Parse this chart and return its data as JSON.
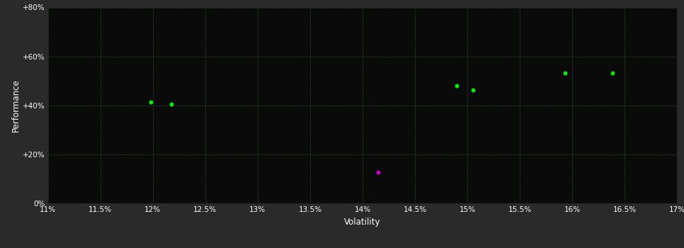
{
  "background_color": "#2a2a2a",
  "plot_bg_color": "#0a0a0a",
  "grid_color": "#3a6a3a",
  "text_color": "#ffffff",
  "xlabel": "Volatility",
  "ylabel": "Performance",
  "xlim": [
    0.11,
    0.17
  ],
  "ylim": [
    0.0,
    0.8
  ],
  "xticks": [
    0.11,
    0.115,
    0.12,
    0.125,
    0.13,
    0.135,
    0.14,
    0.145,
    0.15,
    0.155,
    0.16,
    0.165,
    0.17
  ],
  "yticks": [
    0.0,
    0.2,
    0.4,
    0.6,
    0.8
  ],
  "ytick_labels": [
    "0%",
    "+20%",
    "+40%",
    "+60%",
    "+80%"
  ],
  "xtick_labels": [
    "11%",
    "11.5%",
    "12%",
    "12.5%",
    "13%",
    "13.5%",
    "14%",
    "14.5%",
    "15%",
    "15.5%",
    "16%",
    "16.5%",
    "17%"
  ],
  "green_points": [
    [
      0.1198,
      0.415
    ],
    [
      0.1218,
      0.404
    ],
    [
      0.149,
      0.48
    ],
    [
      0.1505,
      0.464
    ],
    [
      0.1593,
      0.532
    ],
    [
      0.1638,
      0.532
    ]
  ],
  "magenta_points": [
    [
      0.1415,
      0.128
    ]
  ],
  "green_color": "#00ee00",
  "magenta_color": "#cc00cc",
  "point_size": 18
}
